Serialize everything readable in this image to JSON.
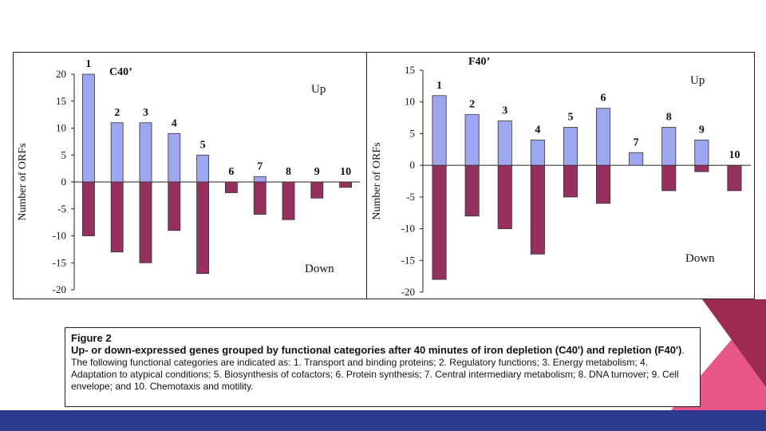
{
  "chart_data": [
    {
      "type": "bar",
      "title": "C40’",
      "ylabel": "Number of ORFs",
      "xlabel": "",
      "ylim": [
        -20,
        20
      ],
      "yticks": [
        20,
        15,
        10,
        5,
        0,
        -5,
        -10,
        -15,
        -20
      ],
      "categories": [
        "1",
        "2",
        "3",
        "4",
        "5",
        "6",
        "7",
        "8",
        "9",
        "10"
      ],
      "series": [
        {
          "name": "Up",
          "color": "#9fa6f0",
          "values": [
            20,
            11,
            11,
            9,
            5,
            0,
            1,
            0,
            0,
            0
          ]
        },
        {
          "name": "Down",
          "color": "#96305f",
          "values": [
            -10,
            -13,
            -15,
            -9,
            -17,
            -2,
            -6,
            -7,
            -3,
            -1
          ]
        }
      ],
      "up_label": "Up",
      "down_label": "Down",
      "grid": false
    },
    {
      "type": "bar",
      "title": "F40’",
      "ylabel": "Number of ORFs",
      "xlabel": "",
      "ylim": [
        -20,
        15
      ],
      "yticks": [
        15,
        10,
        5,
        0,
        -5,
        -10,
        -15,
        -20
      ],
      "categories": [
        "1",
        "2",
        "3",
        "4",
        "5",
        "6",
        "7",
        "8",
        "9",
        "10"
      ],
      "series": [
        {
          "name": "Up",
          "color": "#9fa6f0",
          "values": [
            11,
            8,
            7,
            4,
            6,
            9,
            2,
            6,
            4,
            0
          ]
        },
        {
          "name": "Down",
          "color": "#96305f",
          "values": [
            -18,
            -8,
            -10,
            -14,
            -5,
            -6,
            0,
            -4,
            -1,
            -4
          ]
        }
      ],
      "up_label": "Up",
      "down_label": "Down",
      "grid": false
    }
  ],
  "caption": {
    "figure_label": "Figure 2",
    "title": "Up- or down-expressed genes grouped by functional categories after 40 minutes of iron depletion (C40') and repletion (F40')",
    "body": ". The following functional categories are indicated as: 1. Transport and binding proteins; 2. Regulatory functions; 3. Energy metabolism; 4. Adaptation to atypical conditions; 5. Biosynthesis of cofactors; 6. Protein synthesis; 7. Central intermediary metabolism; 8. DNA turnover; 9. Cell envelope; and 10. Chemotaxis and motility."
  },
  "colors": {
    "up_bar": "#9fa6f0",
    "down_bar": "#96305f",
    "deco_pink": "#e8578a",
    "deco_maroon": "#9c2a52",
    "deco_blue": "#2b3a8f"
  }
}
